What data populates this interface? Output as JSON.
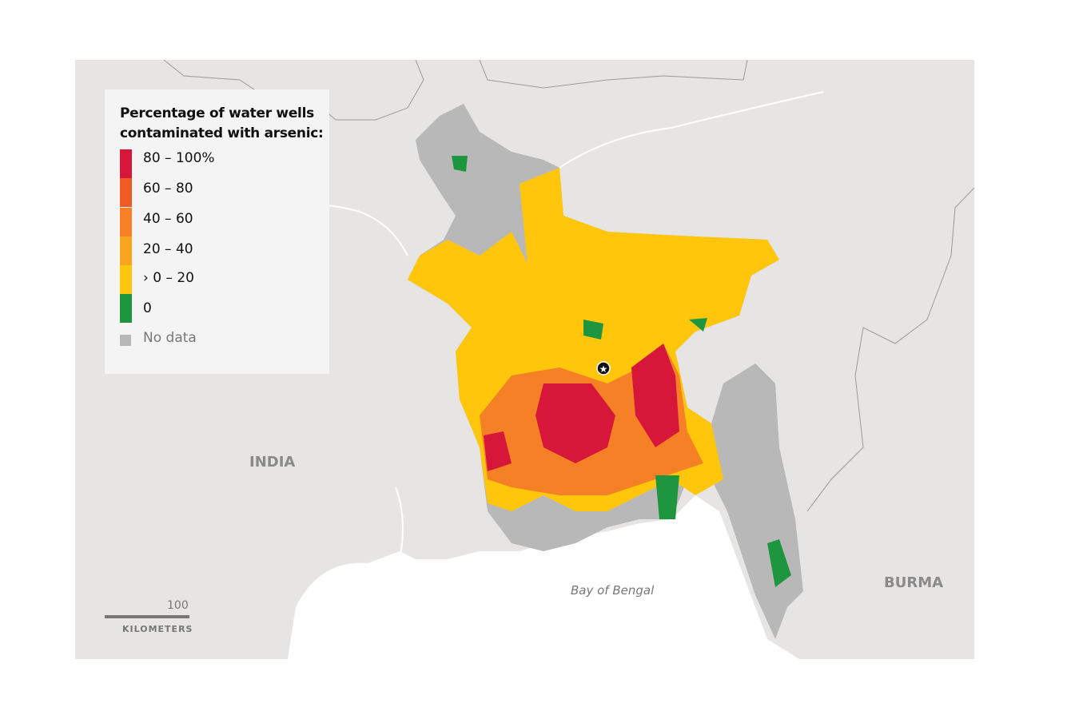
{
  "legend": {
    "title_line1": "Percentage of water wells",
    "title_line2": "contaminated with arsenic:",
    "items": [
      {
        "label": "80 – 100%",
        "color": "#d7173a"
      },
      {
        "label": "60 – 80",
        "color": "#f05a24"
      },
      {
        "label": "40 – 60",
        "color": "#f58025"
      },
      {
        "label": "20 – 40",
        "color": "#f9a51f"
      },
      {
        "label": "› 0 – 20",
        "color": "#ffc60b"
      },
      {
        "label": "0",
        "color": "#1e9640"
      }
    ],
    "no_data_label": "No data",
    "no_data_color": "#b8b8b8"
  },
  "labels": {
    "india": "INDIA",
    "burma": "BURMA",
    "sea": "Bay of Bengal"
  },
  "scale": {
    "value": "100",
    "unit": "KILOMETERS"
  },
  "capital_marker": "star-icon"
}
